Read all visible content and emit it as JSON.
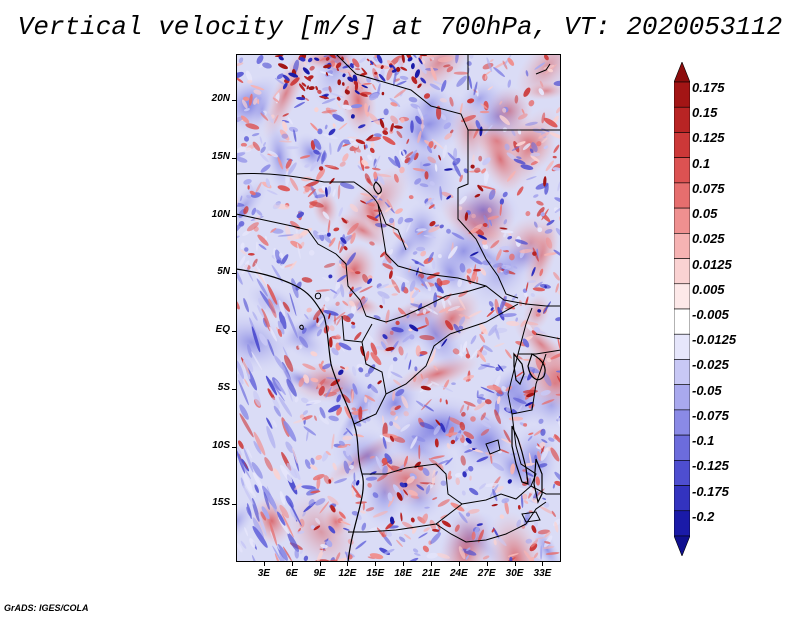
{
  "title": "Vertical velocity [m/s] at 700hPa, VT: 2020053112",
  "footer": "GrADS: IGES/COLA",
  "map": {
    "lon_range": [
      0,
      35
    ],
    "lat_range": [
      -20,
      24
    ],
    "y_ticks": [
      {
        "label": "20N",
        "lat": 20
      },
      {
        "label": "15N",
        "lat": 15
      },
      {
        "label": "10N",
        "lat": 10
      },
      {
        "label": "5N",
        "lat": 5
      },
      {
        "label": "EQ",
        "lat": 0
      },
      {
        "label": "5S",
        "lat": -5
      },
      {
        "label": "10S",
        "lat": -10
      },
      {
        "label": "15S",
        "lat": -15
      }
    ],
    "x_ticks": [
      {
        "label": "3E",
        "lon": 3
      },
      {
        "label": "6E",
        "lon": 6
      },
      {
        "label": "9E",
        "lon": 9
      },
      {
        "label": "12E",
        "lon": 12
      },
      {
        "label": "15E",
        "lon": 15
      },
      {
        "label": "18E",
        "lon": 18
      },
      {
        "label": "21E",
        "lon": 21
      },
      {
        "label": "24E",
        "lon": 24
      },
      {
        "label": "27E",
        "lon": 27
      },
      {
        "label": "30E",
        "lon": 30
      },
      {
        "label": "33E",
        "lon": 33
      }
    ]
  },
  "colorbar": {
    "levels": [
      {
        "label": "0.175",
        "color": "#a31515"
      },
      {
        "label": "0.15",
        "color": "#b82424"
      },
      {
        "label": "0.125",
        "color": "#cc3838"
      },
      {
        "label": "0.1",
        "color": "#dc5252"
      },
      {
        "label": "0.075",
        "color": "#e66e6e"
      },
      {
        "label": "0.05",
        "color": "#ef9090"
      },
      {
        "label": "0.025",
        "color": "#f6b3b3"
      },
      {
        "label": "0.0125",
        "color": "#fad2d2"
      },
      {
        "label": "0.005",
        "color": "#fde9e9"
      },
      {
        "label": "-0.005",
        "color": "#ffffff"
      },
      {
        "label": "-0.0125",
        "color": "#e6e6fb"
      },
      {
        "label": "-0.025",
        "color": "#c8c8f5"
      },
      {
        "label": "-0.05",
        "color": "#a9a9ee"
      },
      {
        "label": "-0.075",
        "color": "#8a8ae6"
      },
      {
        "label": "-0.1",
        "color": "#6c6cdc"
      },
      {
        "label": "-0.125",
        "color": "#4e4ed0"
      },
      {
        "label": "-0.175",
        "color": "#3333bf"
      },
      {
        "label": "-0.2",
        "color": "#1a1aa8"
      }
    ],
    "top_arrow_color": "#8c0d0d",
    "bottom_arrow_color": "#10108f"
  }
}
